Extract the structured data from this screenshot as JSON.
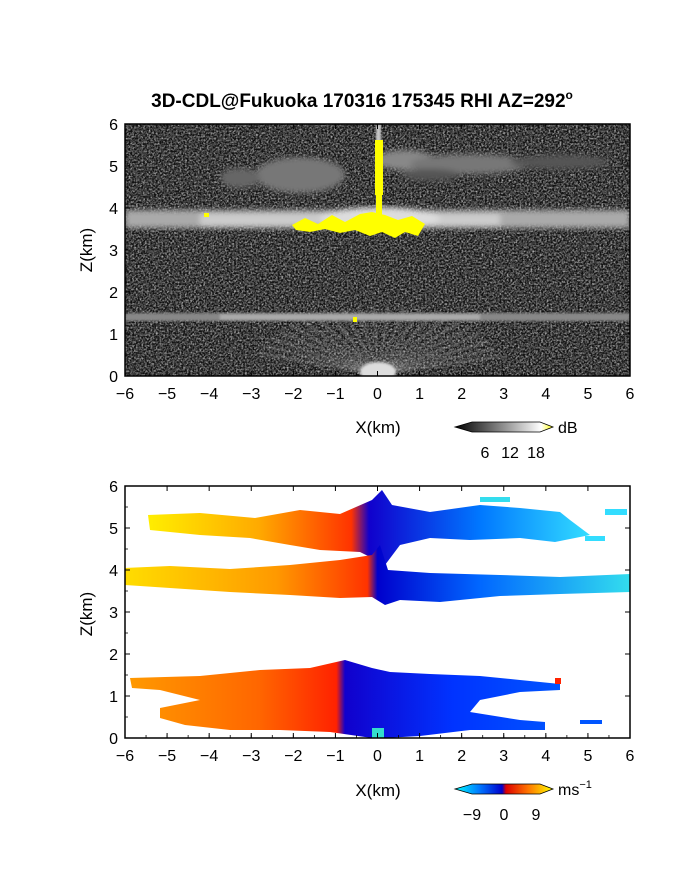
{
  "chart_data": [
    {
      "type": "heatmap",
      "title": "3D-CDL@Fukuoka 170316 175345 RHI AZ=292",
      "title_superscript": "o",
      "xlabel": "X(km)",
      "ylabel": "Z(km)",
      "xlim": [
        -6,
        6
      ],
      "ylim": [
        0,
        6
      ],
      "x_ticks": [
        "-6",
        "-5",
        "-4",
        "-3",
        "-2",
        "-1",
        "0",
        "1",
        "2",
        "3",
        "4",
        "5",
        "6"
      ],
      "y_ticks": [
        "0",
        "1",
        "2",
        "3",
        "4",
        "5",
        "6"
      ],
      "quantity": "reflectivity (grayscale, yellow = saturated)",
      "features": [
        {
          "name": "upper cloud layer",
          "x_range": [
            -2,
            6
          ],
          "z_center": 5.0,
          "z_thickness": 0.35
        },
        {
          "name": "mid cloud layer",
          "x_range": [
            -6,
            6
          ],
          "z_center": 3.65,
          "z_thickness": 0.35
        },
        {
          "name": "lower aerosol layer",
          "x_range": [
            -6,
            6
          ],
          "z_center": 1.4,
          "z_thickness": 0.15
        },
        {
          "name": "vertical beam streak",
          "x": 0.05,
          "z_range": [
            3.3,
            6.0
          ]
        }
      ],
      "colorbar": {
        "unit": "dB",
        "ticks": [
          "6",
          "12",
          "18"
        ],
        "range": [
          0,
          20
        ],
        "colors": [
          "#000000",
          "#ffffff",
          "#ffff00"
        ]
      }
    },
    {
      "type": "heatmap",
      "xlabel": "X(km)",
      "ylabel": "Z(km)",
      "xlim": [
        -6,
        6
      ],
      "ylim": [
        0,
        6
      ],
      "x_ticks": [
        "-6",
        "-5",
        "-4",
        "-3",
        "-2",
        "-1",
        "0",
        "1",
        "2",
        "3",
        "4",
        "5",
        "6"
      ],
      "y_ticks": [
        "0",
        "1",
        "2",
        "3",
        "4",
        "5",
        "6"
      ],
      "quantity": "Doppler velocity",
      "features": [
        {
          "name": "upper layer",
          "x_range": [
            -5.5,
            6
          ],
          "z_center": 5.0,
          "velocity_left": 9,
          "velocity_right": -9
        },
        {
          "name": "mid layer",
          "x_range": [
            -6,
            6
          ],
          "z_center": 3.75,
          "velocity_left": 9,
          "velocity_right": -9
        },
        {
          "name": "lower layer",
          "x_range": [
            -6,
            5
          ],
          "z_center": 1.0,
          "velocity_left": 4,
          "velocity_right": -4
        }
      ],
      "colorbar": {
        "unit": "ms",
        "unit_superscript": "−1",
        "ticks": [
          "−9",
          "0",
          "9"
        ],
        "range": [
          -12,
          12
        ],
        "colors": [
          "#00ffff",
          "#0066ff",
          "#0000dd",
          "#ff0000",
          "#ff8800",
          "#ffff00"
        ]
      }
    }
  ]
}
